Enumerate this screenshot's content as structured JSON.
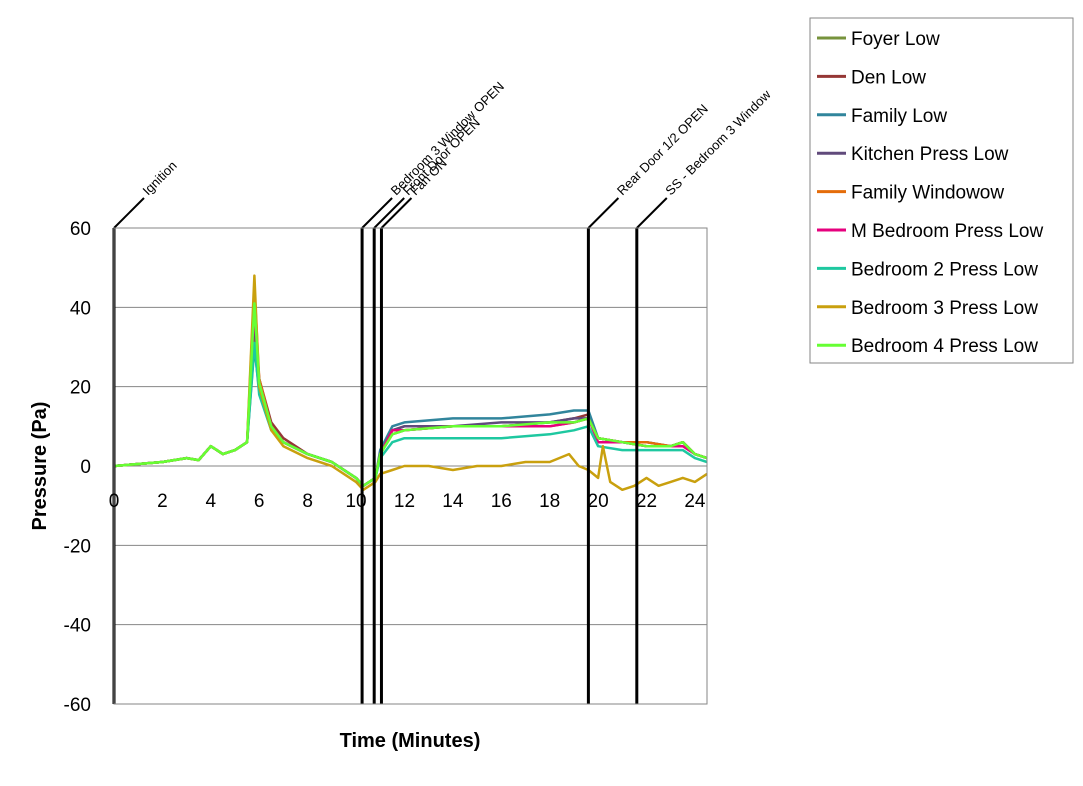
{
  "chart_data": {
    "type": "line",
    "title": "",
    "xlabel": "Time (Minutes)",
    "ylabel": "Pressure (Pa)",
    "xlim": [
      0,
      24.5
    ],
    "ylim": [
      -60,
      60
    ],
    "xticks": [
      0,
      2,
      4,
      6,
      8,
      10,
      12,
      14,
      16,
      18,
      20,
      22,
      24
    ],
    "yticks": [
      -60,
      -40,
      -20,
      0,
      20,
      40,
      60
    ],
    "grid": "horizontal",
    "legend_position": "right",
    "events": [
      {
        "label": "Ignition",
        "x": 0
      },
      {
        "label": "Bedroom 3 Window OPEN",
        "x": 10.25
      },
      {
        "label": "Front Door OPEN",
        "x": 10.75
      },
      {
        "label": "Fan ON",
        "x": 11.05
      },
      {
        "label": "Rear Door 1/2 OPEN",
        "x": 19.6
      },
      {
        "label": "SS - Bedroom 3 Window",
        "x": 21.6
      }
    ],
    "series": [
      {
        "name": "Foyer Low",
        "color": "#77933c",
        "x": [
          0,
          1,
          2,
          3,
          3.5,
          4,
          4.5,
          5,
          5.5,
          5.8,
          6,
          6.5,
          7,
          8,
          9,
          10,
          10.3,
          10.8,
          11,
          11.5,
          12,
          14,
          16,
          18,
          19,
          19.6,
          20,
          21,
          22,
          23,
          23.5,
          24,
          24.5
        ],
        "y": [
          0,
          0.5,
          1,
          2,
          1.5,
          5,
          3,
          4,
          6,
          36,
          20,
          10,
          6,
          3,
          1,
          -3,
          -5,
          -3,
          3,
          8,
          9,
          10,
          10,
          11,
          11,
          12,
          7,
          6,
          5,
          5,
          6,
          3,
          2
        ]
      },
      {
        "name": "Den Low",
        "color": "#953735",
        "x": [
          0,
          1,
          2,
          3,
          3.5,
          4,
          4.5,
          5,
          5.5,
          5.8,
          6,
          6.5,
          7,
          8,
          9,
          10,
          10.3,
          10.8,
          11,
          11.5,
          12,
          14,
          16,
          18,
          19,
          19.6,
          20,
          21,
          22,
          23,
          23.5,
          24,
          24.5
        ],
        "y": [
          0,
          0.5,
          1,
          2,
          1.5,
          5,
          3,
          4,
          6,
          38,
          22,
          11,
          7,
          3,
          1,
          -3,
          -5,
          -3,
          3,
          9,
          10,
          10,
          10,
          11,
          12,
          13,
          7,
          6,
          6,
          5,
          6,
          3,
          2
        ]
      },
      {
        "name": "Family Low",
        "color": "#31859c",
        "x": [
          0,
          1,
          2,
          3,
          3.5,
          4,
          4.5,
          5,
          5.5,
          5.8,
          6,
          6.5,
          7,
          8,
          9,
          10,
          10.3,
          10.8,
          11,
          11.5,
          12,
          14,
          16,
          18,
          19,
          19.6,
          20,
          21,
          22,
          23,
          23.5,
          24,
          24.5
        ],
        "y": [
          0,
          0.5,
          1,
          2,
          1.5,
          5,
          3,
          4,
          6,
          30,
          19,
          10,
          6,
          3,
          1,
          -3,
          -5,
          -3,
          4,
          10,
          11,
          12,
          12,
          13,
          14,
          14,
          7,
          6,
          6,
          5,
          6,
          3,
          2
        ]
      },
      {
        "name": "Kitchen Press Low",
        "color": "#604a7b",
        "x": [
          0,
          1,
          2,
          3,
          3.5,
          4,
          4.5,
          5,
          5.5,
          5.8,
          6,
          6.5,
          7,
          8,
          9,
          10,
          10.3,
          10.8,
          11,
          11.5,
          12,
          14,
          16,
          18,
          19,
          19.6,
          20,
          21,
          22,
          23,
          23.5,
          24,
          24.5
        ],
        "y": [
          0,
          0.5,
          1,
          2,
          1.5,
          5,
          3,
          4,
          6,
          37,
          21,
          10,
          6,
          3,
          1,
          -3,
          -5,
          -3,
          3,
          9,
          10,
          10,
          11,
          11,
          12,
          12,
          7,
          6,
          5,
          5,
          6,
          3,
          2
        ]
      },
      {
        "name": "Family Windowow",
        "color": "#e46c0a",
        "x": [
          0,
          1,
          2,
          3,
          3.5,
          4,
          4.5,
          5,
          5.5,
          5.8,
          6,
          6.5,
          7,
          8,
          9,
          10,
          10.3,
          10.8,
          11,
          11.5,
          12,
          14,
          16,
          18,
          19,
          19.6,
          20,
          21,
          22,
          23,
          23.5,
          24,
          24.5
        ],
        "y": [
          0,
          0.5,
          1,
          2,
          1.5,
          5,
          3,
          4,
          6,
          45,
          22,
          10,
          6,
          3,
          1,
          -3,
          -5,
          -3,
          3,
          9,
          9,
          10,
          10,
          10,
          11,
          12,
          7,
          6,
          6,
          5,
          6,
          3,
          2
        ]
      },
      {
        "name": "M Bedroom Press Low",
        "color": "#e6007e",
        "x": [
          0,
          1,
          2,
          3,
          3.5,
          4,
          4.5,
          5,
          5.5,
          5.8,
          6,
          6.5,
          7,
          8,
          9,
          10,
          10.3,
          10.8,
          11,
          11.5,
          12,
          14,
          16,
          18,
          19,
          19.6,
          20,
          21,
          22,
          23,
          23.5,
          24,
          24.5
        ],
        "y": [
          0,
          0.5,
          1,
          2,
          1.5,
          5,
          3,
          4,
          6,
          40,
          21,
          10,
          6,
          3,
          1,
          -3,
          -5,
          -3,
          3,
          9,
          9,
          10,
          10,
          10,
          11,
          12,
          6,
          6,
          5,
          5,
          5,
          3,
          2
        ]
      },
      {
        "name": "Bedroom 2 Press Low",
        "color": "#1ec8a0",
        "x": [
          0,
          1,
          2,
          3,
          3.5,
          4,
          4.5,
          5,
          5.5,
          5.8,
          6,
          6.5,
          7,
          8,
          9,
          10,
          10.3,
          10.8,
          11,
          11.5,
          12,
          14,
          16,
          18,
          19,
          19.6,
          20,
          21,
          22,
          23,
          23.5,
          24,
          24.5
        ],
        "y": [
          0,
          0.5,
          1,
          2,
          1.5,
          5,
          3,
          4,
          6,
          31,
          18,
          9,
          6,
          3,
          1,
          -3,
          -5,
          -3,
          2,
          6,
          7,
          7,
          7,
          8,
          9,
          10,
          5,
          4,
          4,
          4,
          4,
          2,
          1
        ]
      },
      {
        "name": "Bedroom 3 Press Low",
        "color": "#c9a00e",
        "x": [
          0,
          1,
          2,
          3,
          3.5,
          4,
          4.5,
          5,
          5.5,
          5.8,
          6,
          6.5,
          7,
          8,
          9,
          10,
          10.3,
          10.8,
          11,
          11.5,
          12,
          13,
          14,
          15,
          16,
          17,
          18,
          18.8,
          19.2,
          19.6,
          20,
          20.2,
          20.5,
          21,
          21.5,
          22,
          22.5,
          23,
          23.5,
          24,
          24.5
        ],
        "y": [
          0,
          0.5,
          1,
          2,
          1.5,
          5,
          3,
          4,
          6,
          48,
          20,
          9,
          5,
          2,
          0,
          -4,
          -6,
          -4,
          -2,
          -1,
          0,
          0,
          -1,
          0,
          0,
          1,
          1,
          3,
          0,
          -1,
          -3,
          5,
          -4,
          -6,
          -5,
          -3,
          -5,
          -4,
          -3,
          -4,
          -2
        ]
      },
      {
        "name": "Bedroom 4 Press Low",
        "color": "#66ff33",
        "x": [
          0,
          1,
          2,
          3,
          3.5,
          4,
          4.5,
          5,
          5.5,
          5.8,
          6,
          6.5,
          7,
          8,
          9,
          10,
          10.3,
          10.8,
          11,
          11.5,
          12,
          14,
          16,
          18,
          19,
          19.6,
          20,
          21,
          22,
          23,
          23.5,
          24,
          24.5
        ],
        "y": [
          0,
          0.5,
          1,
          2,
          1.5,
          5,
          3,
          4,
          6,
          41,
          21,
          10,
          6,
          3,
          1,
          -3,
          -5,
          -3,
          3,
          8,
          9,
          10,
          10,
          11,
          11,
          12,
          7,
          6,
          5,
          5,
          6,
          3,
          2
        ]
      }
    ]
  }
}
